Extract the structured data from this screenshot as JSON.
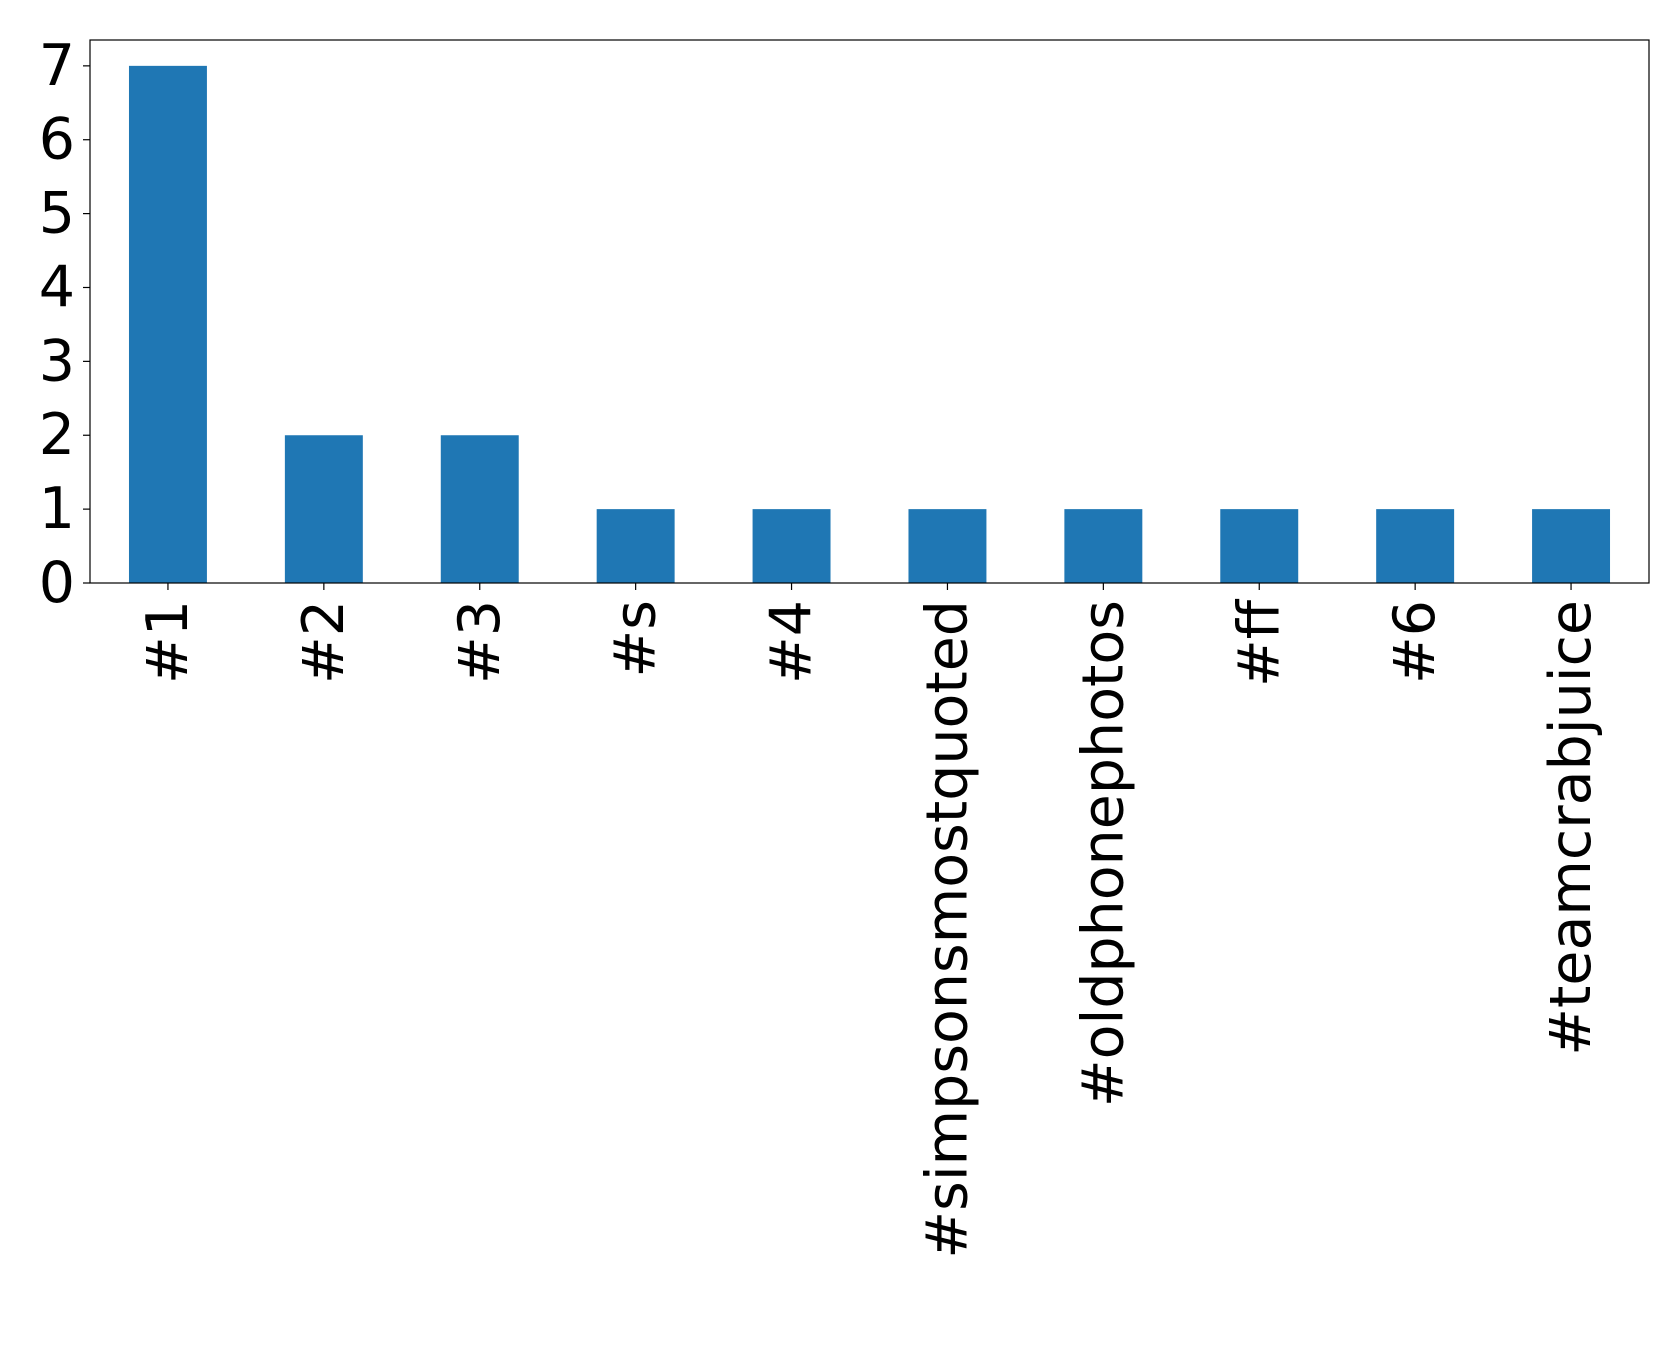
{
  "chart_data": {
    "type": "bar",
    "title": "",
    "xlabel": "",
    "ylabel": "",
    "categories": [
      "#1",
      "#2",
      "#3",
      "#s",
      "#4",
      "#simpsonsmostquoted",
      "#oldphonephotos",
      "#ff",
      "#6",
      "#teamcrabjuice"
    ],
    "values": [
      7,
      2,
      2,
      1,
      1,
      1,
      1,
      1,
      1,
      1
    ],
    "ylim": [
      0,
      7.35
    ],
    "yticks": [
      0,
      1,
      2,
      3,
      4,
      5,
      6,
      7
    ],
    "ytick_labels": [
      "0",
      "1",
      "2",
      "3",
      "4",
      "5",
      "6",
      "7"
    ],
    "grid": false,
    "legend": "none",
    "colors": {
      "bar": "#1f77b4",
      "axis": "#000000",
      "background": "#ffffff"
    }
  }
}
